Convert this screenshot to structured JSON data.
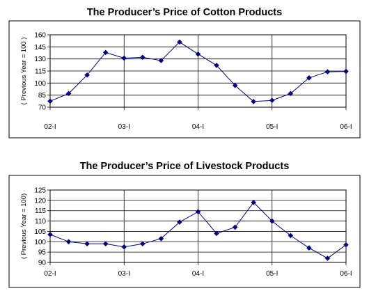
{
  "colors": {
    "series": "#000080",
    "border": "#000000",
    "grid": "#000000",
    "background": "#ffffff"
  },
  "chart_data": [
    {
      "type": "line",
      "title": "The Producer’s Price of Cotton Products",
      "ylabel": "( Previous Year = 100 )",
      "xlabel": "",
      "ylim": [
        70,
        160
      ],
      "yticks": [
        160,
        145,
        130,
        115,
        100,
        85,
        70
      ],
      "ytick_labels": [
        "160",
        "145",
        "130",
        "115",
        "100",
        "85",
        "70"
      ],
      "xlim": [
        0,
        16
      ],
      "xticks": [
        0,
        4,
        8,
        12,
        16
      ],
      "xtick_labels": [
        "02-I",
        "03-I",
        "04-I",
        "05-I",
        "06-I"
      ],
      "grid": true,
      "marker": "diamond",
      "series": [
        {
          "x": [
            0,
            1,
            2,
            3,
            4,
            5,
            6,
            7,
            8,
            9,
            10,
            11,
            12,
            13,
            14,
            15,
            16
          ],
          "values": [
            77.5,
            87,
            110,
            138,
            131,
            132,
            128,
            151,
            136,
            122,
            97,
            77,
            78.5,
            87,
            106.5,
            114,
            114.5
          ]
        }
      ]
    },
    {
      "type": "line",
      "title": "The Producer’s Price of Livestock Products",
      "ylabel": "( Previous Year = 100)",
      "xlabel": "",
      "ylim": [
        90,
        125
      ],
      "yticks": [
        125,
        120,
        115,
        110,
        105,
        100,
        95,
        90
      ],
      "ytick_labels": [
        "125",
        "120",
        "115",
        "110",
        "105",
        "100",
        "95",
        "90"
      ],
      "xlim": [
        0,
        16
      ],
      "xticks": [
        0,
        4,
        8,
        12,
        16
      ],
      "xtick_labels": [
        "02-I",
        "03-I",
        "04-I",
        "05-I",
        "06-I"
      ],
      "grid": true,
      "marker": "diamond",
      "series": [
        {
          "x": [
            0,
            1,
            2,
            3,
            4,
            5,
            6,
            7,
            8,
            9,
            10,
            11,
            12,
            13,
            14,
            15,
            16
          ],
          "values": [
            103.5,
            100,
            99,
            99,
            97.5,
            99,
            101.5,
            109.5,
            114.5,
            104,
            107,
            119,
            110,
            103,
            97,
            92,
            98.5
          ]
        }
      ]
    }
  ]
}
